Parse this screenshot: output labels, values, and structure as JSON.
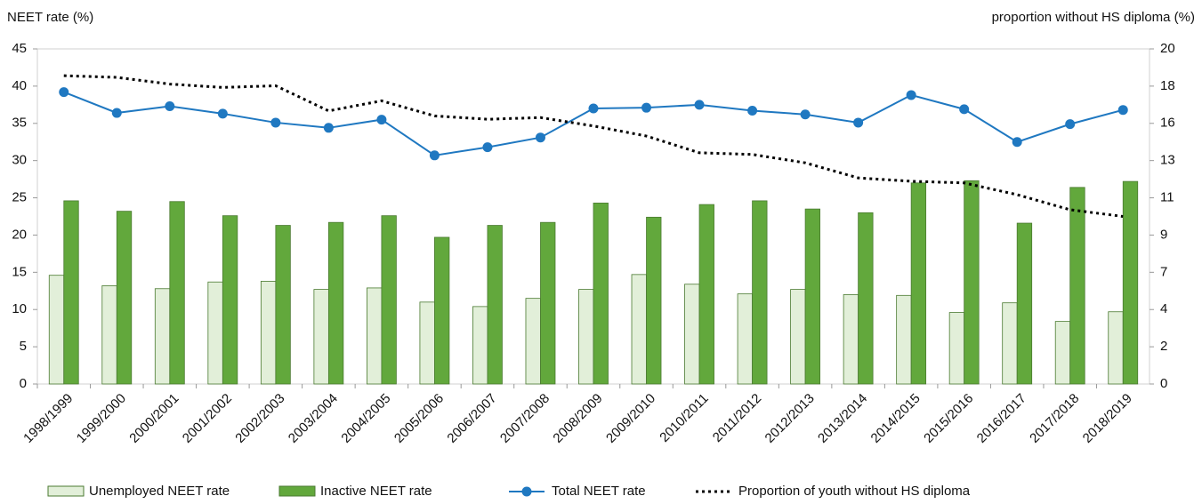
{
  "chart_data": {
    "type": "bar",
    "y_axis_label": "NEET rate (%)",
    "y2_axis_label": "proportion without HS diploma (%)",
    "categories": [
      "1998/1999",
      "1999/2000",
      "2000/2001",
      "2001/2002",
      "2002/2003",
      "2003/2004",
      "2004/2005",
      "2005/2006",
      "2006/2007",
      "2007/2008",
      "2008/2009",
      "2009/2010",
      "2010/2011",
      "2011/2012",
      "2012/2013",
      "2013/2014",
      "2014/2015",
      "2015/2016",
      "2016/2017",
      "2017/2018",
      "2018/2019"
    ],
    "ylim": [
      0,
      45
    ],
    "yticks": [
      0,
      5,
      10,
      15,
      20,
      25,
      30,
      35,
      40,
      45
    ],
    "y2lim": [
      0,
      20
    ],
    "y2ticks": [
      0,
      {
        "value": 2.222,
        "label": "2"
      },
      {
        "value": 4.444,
        "label": "4"
      },
      {
        "value": 6.667,
        "label": "7"
      },
      {
        "value": 8.889,
        "label": "9"
      },
      {
        "value": 11.111,
        "label": "11"
      },
      {
        "value": 13.333,
        "label": "13"
      },
      {
        "value": 15.556,
        "label": "16"
      },
      {
        "value": 17.778,
        "label": "18"
      },
      20
    ],
    "series": [
      {
        "name": "Unemployed NEET rate",
        "type": "bar",
        "color": "#e2efd9",
        "values": [
          14.6,
          13.2,
          12.8,
          13.7,
          13.8,
          12.7,
          12.9,
          11.0,
          10.4,
          11.5,
          12.7,
          14.7,
          13.4,
          12.1,
          12.7,
          12.0,
          11.9,
          9.6,
          10.9,
          8.4,
          9.7
        ]
      },
      {
        "name": "Inactive NEET rate",
        "type": "bar",
        "color": "#62a83c",
        "values": [
          24.6,
          23.2,
          24.5,
          22.6,
          21.3,
          21.7,
          22.6,
          19.7,
          21.3,
          21.7,
          24.3,
          22.4,
          24.1,
          24.6,
          23.5,
          23.0,
          27.0,
          27.3,
          21.6,
          26.4,
          27.2
        ]
      },
      {
        "name": "Total NEET rate",
        "type": "line",
        "marker": "circle",
        "color": "#1f78c1",
        "values": [
          39.2,
          36.4,
          37.3,
          36.3,
          35.1,
          34.4,
          35.5,
          30.7,
          31.8,
          33.1,
          37.0,
          37.1,
          37.5,
          36.7,
          36.2,
          35.1,
          38.8,
          36.9,
          32.5,
          34.9,
          36.8
        ]
      },
      {
        "name": "Proportion of youth without HS diploma",
        "type": "line",
        "dash": "dotted",
        "axis": "y2",
        "color": "#000000",
        "values": [
          18.4,
          18.3,
          17.9,
          17.7,
          17.8,
          16.3,
          16.9,
          16.0,
          15.8,
          15.9,
          15.4,
          14.8,
          13.8,
          13.7,
          13.2,
          12.3,
          12.1,
          12.0,
          11.3,
          10.4,
          10.0
        ]
      }
    ]
  }
}
